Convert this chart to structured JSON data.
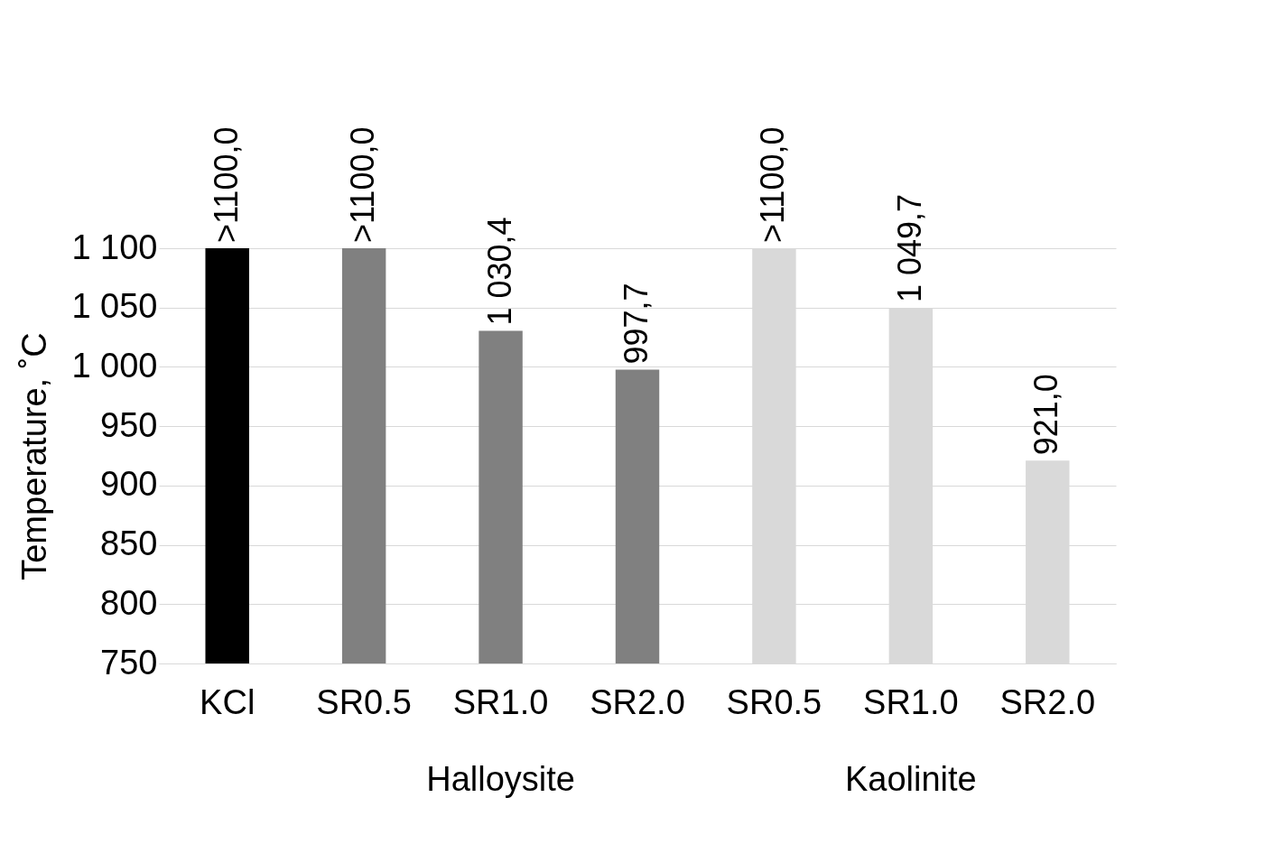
{
  "chart_data": {
    "type": "bar",
    "categories": [
      "KCl",
      "SR0.5",
      "SR1.0",
      "SR2.0",
      "SR0.5",
      "SR1.0",
      "SR2.0"
    ],
    "values": [
      1100,
      1100,
      1030.4,
      997.7,
      1100,
      1049.7,
      921.0
    ],
    "colors": [
      "#000000",
      "#808080",
      "#808080",
      "#808080",
      "#d9d9d9",
      "#d9d9d9",
      "#d9d9d9"
    ],
    "value_labels": [
      ">1100,0",
      ">1100,0",
      "1 030,4",
      "997,7",
      ">1100,0",
      "1 049,7",
      "921,0"
    ],
    "ylabel": "Temperature, ˚C",
    "ylim": [
      750,
      1100
    ],
    "yticks": [
      750,
      800,
      850,
      900,
      950,
      {
        "value": 1000,
        "label": "1 000"
      },
      {
        "value": 1050,
        "label": "1 050"
      },
      {
        "value": 1100,
        "label": "1 100"
      }
    ],
    "grid": "y",
    "annotations": [
      "Halloysite",
      "Kaolinite"
    ]
  }
}
